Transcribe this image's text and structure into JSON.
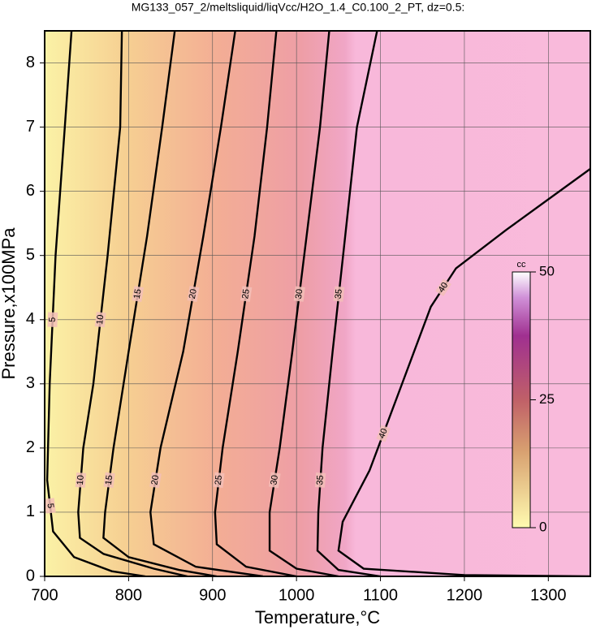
{
  "chart_data": {
    "type": "contour",
    "title": "MG133_057_2/meltsliquid/liqVcc/H2O_1.4_C0.100_2_PT, dz=0.5:",
    "x_label": "Temperature,°C",
    "y_label": "Pressure,x100MPa",
    "xlim": [
      700,
      1350
    ],
    "ylim": [
      0,
      8.5
    ],
    "xticks": [
      700,
      800,
      900,
      1000,
      1100,
      1200,
      1300
    ],
    "yticks": [
      0,
      1,
      2,
      3,
      4,
      5,
      6,
      7,
      8
    ],
    "grid": true,
    "colorbar": {
      "label": "cc",
      "lim": [
        0,
        50
      ],
      "ticks": [
        0,
        25,
        50
      ]
    },
    "contours": [
      {
        "level": 5,
        "x": [
          732,
          724,
          713,
          706,
          703,
          710,
          735,
          780,
          820
        ],
        "y": [
          8.5,
          7,
          5,
          3,
          1.5,
          0.7,
          0.3,
          0.08,
          0
        ]
      },
      {
        "level": 10,
        "x": [
          792,
          790,
          775,
          758,
          746,
          740,
          742,
          770,
          830,
          870
        ],
        "y": [
          8.5,
          7,
          5,
          3,
          2,
          1,
          0.6,
          0.35,
          0.12,
          0
        ]
      },
      {
        "level": 15,
        "x": [
          855,
          840,
          822,
          800,
          782,
          772,
          770,
          800,
          860,
          905
        ],
        "y": [
          8.5,
          7,
          5.3,
          3.5,
          2,
          1,
          0.6,
          0.3,
          0.1,
          0
        ]
      },
      {
        "level": 20,
        "x": [
          927,
          910,
          889,
          865,
          838,
          826,
          830,
          880,
          960
        ],
        "y": [
          8.5,
          7,
          5.3,
          3.5,
          2,
          1,
          0.5,
          0.15,
          0
        ]
      },
      {
        "level": 25,
        "x": [
          976,
          965,
          950,
          930,
          912,
          903,
          905,
          940,
          1000
        ],
        "y": [
          8.5,
          7,
          5.3,
          3.5,
          2,
          1,
          0.5,
          0.15,
          0
        ]
      },
      {
        "level": 30,
        "x": [
          1039,
          1028,
          1012,
          995,
          980,
          968,
          968,
          1000,
          1050
        ],
        "y": [
          8.5,
          7,
          5.3,
          3.5,
          2,
          1,
          0.4,
          0.12,
          0
        ]
      },
      {
        "level": 35,
        "x": [
          1096,
          1072,
          1058,
          1043,
          1031,
          1026,
          1025,
          1050,
          1100
        ],
        "y": [
          8.5,
          7,
          5.3,
          3.5,
          2,
          1,
          0.4,
          0.1,
          0
        ]
      },
      {
        "level": 40,
        "x": [
          1350,
          1250,
          1190,
          1160,
          1120,
          1087,
          1055,
          1050,
          1080,
          1200,
          1350
        ],
        "y": [
          6.35,
          5.4,
          4.8,
          4.2,
          2.8,
          1.65,
          0.85,
          0.4,
          0.12,
          0.02,
          0
        ]
      }
    ]
  }
}
